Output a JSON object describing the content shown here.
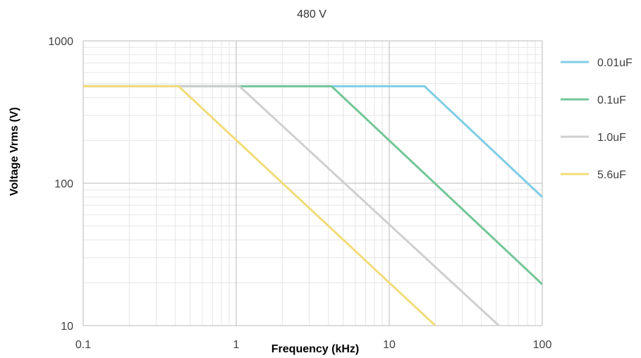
{
  "chart_data": {
    "type": "line",
    "title": "480 V",
    "xlabel": "Frequency (kHz)",
    "ylabel": "Voltage Vrms (V)",
    "x_scale": "log",
    "y_scale": "log",
    "xlim": [
      0.1,
      100
    ],
    "ylim": [
      10,
      1000
    ],
    "x_ticks": [
      0.1,
      1,
      10,
      100
    ],
    "x_tick_labels": [
      "0.1",
      "1",
      "10",
      "100"
    ],
    "y_ticks": [
      10,
      100,
      1000
    ],
    "y_tick_labels": [
      "10",
      "100",
      "1000"
    ],
    "grid": true,
    "legend_position": "right",
    "series": [
      {
        "name": "0.01uF",
        "color": "#7fcde6",
        "points": [
          [
            0.1,
            480
          ],
          [
            17,
            480
          ],
          [
            100,
            80
          ]
        ]
      },
      {
        "name": "0.1uF",
        "color": "#73c698",
        "points": [
          [
            0.1,
            480
          ],
          [
            4.2,
            480
          ],
          [
            100,
            19.5
          ]
        ]
      },
      {
        "name": "1.0uF",
        "color": "#cfcfcf",
        "points": [
          [
            0.1,
            480
          ],
          [
            1.05,
            480
          ],
          [
            52,
            10
          ]
        ]
      },
      {
        "name": "5.6uF",
        "color": "#f2dc79",
        "points": [
          [
            0.1,
            480
          ],
          [
            0.42,
            480
          ],
          [
            20,
            10
          ]
        ]
      }
    ]
  }
}
